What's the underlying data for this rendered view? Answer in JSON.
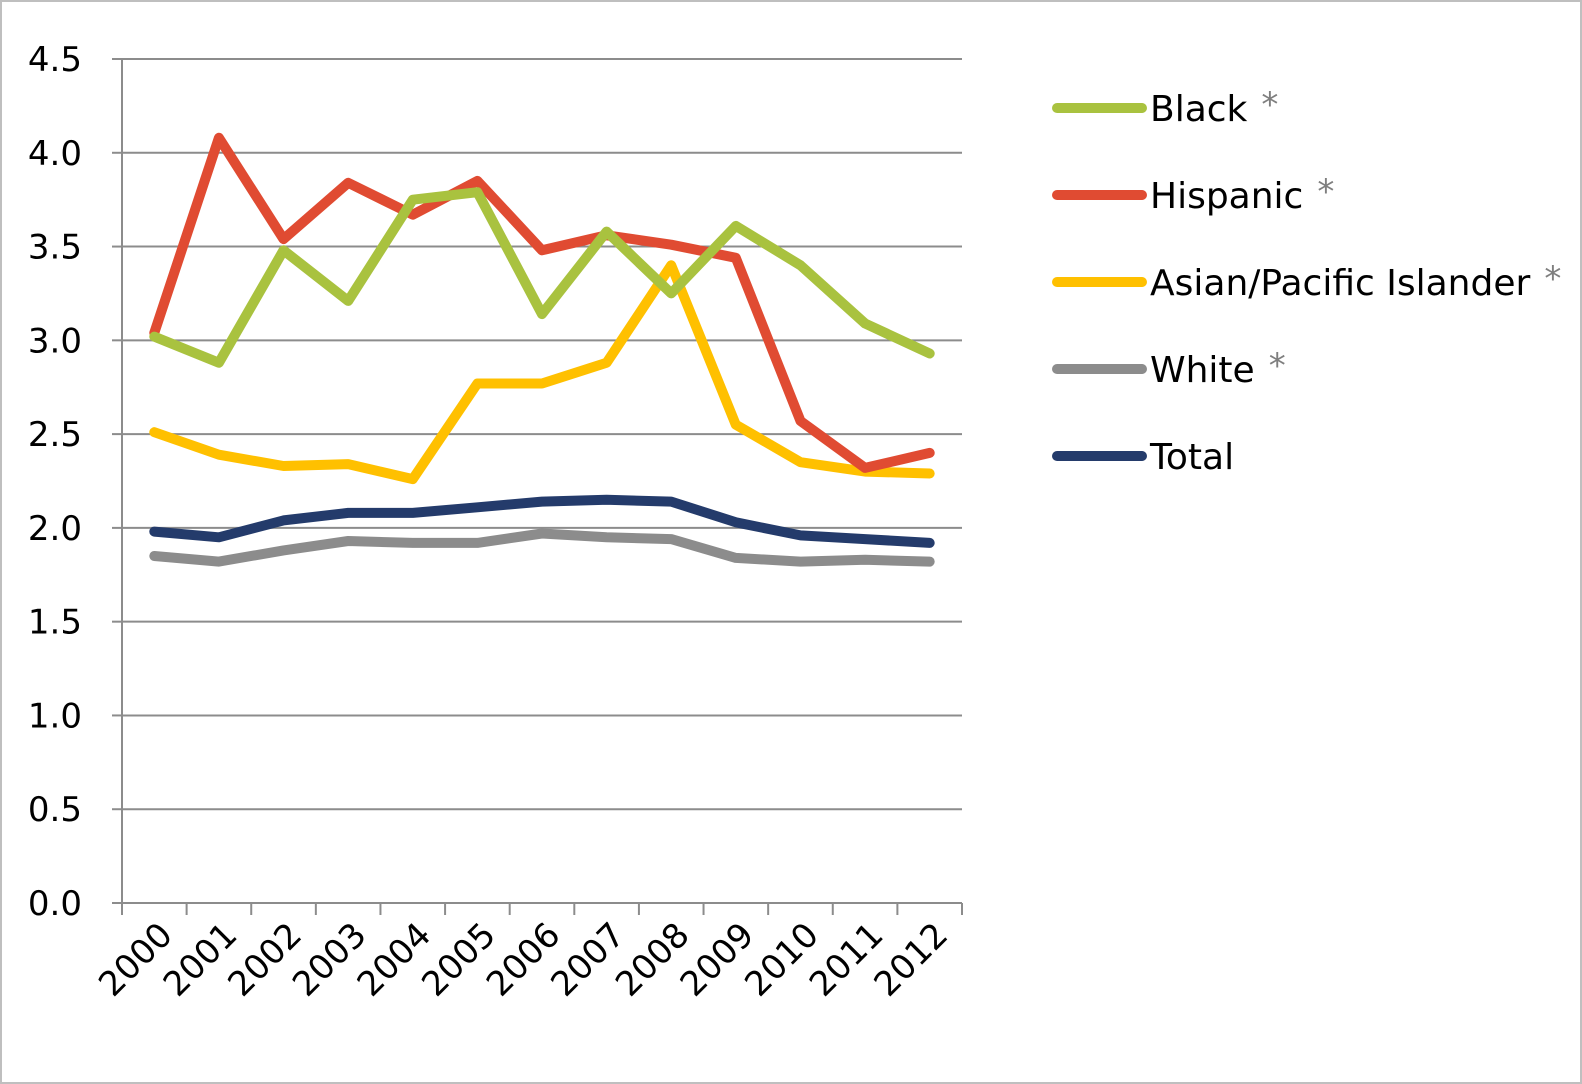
{
  "chart_data": {
    "type": "line",
    "title": "",
    "xlabel": "",
    "ylabel": "",
    "x": [
      "2000",
      "2001",
      "2002",
      "2003",
      "2004",
      "2005",
      "2006",
      "2007",
      "2008",
      "2009",
      "2010",
      "2011",
      "2012"
    ],
    "ylim": [
      0,
      4.5
    ],
    "yticks": [
      "0.0",
      "0.5",
      "1.0",
      "1.5",
      "2.0",
      "2.5",
      "3.0",
      "3.5",
      "4.0",
      "4.5"
    ],
    "grid": true,
    "legend_position": "right",
    "series": [
      {
        "name": "Black",
        "star": "*",
        "color": "#a9c23f",
        "values": [
          3.02,
          2.88,
          3.48,
          3.21,
          3.75,
          3.79,
          3.14,
          3.58,
          3.25,
          3.61,
          3.4,
          3.09,
          2.93
        ]
      },
      {
        "name": "Hispanic",
        "star": "*",
        "color": "#e04b32",
        "values": [
          3.04,
          4.08,
          3.54,
          3.84,
          3.67,
          3.85,
          3.48,
          3.56,
          3.51,
          3.44,
          2.57,
          2.32,
          2.4
        ]
      },
      {
        "name": "Asian/Pacific Islander",
        "star": "*",
        "color": "#ffc000",
        "values": [
          2.51,
          2.39,
          2.33,
          2.34,
          2.26,
          2.77,
          2.77,
          2.88,
          3.4,
          2.55,
          2.35,
          2.3,
          2.29
        ]
      },
      {
        "name": "White",
        "star": "*",
        "color": "#8c8c8c",
        "values": [
          1.85,
          1.82,
          1.88,
          1.93,
          1.92,
          1.92,
          1.97,
          1.95,
          1.94,
          1.84,
          1.82,
          1.83,
          1.82
        ]
      },
      {
        "name": "Total",
        "star": "",
        "color": "#243b6b",
        "values": [
          1.98,
          1.95,
          2.04,
          2.08,
          2.08,
          2.11,
          2.14,
          2.15,
          2.14,
          2.03,
          1.96,
          1.94,
          1.92
        ]
      }
    ]
  }
}
